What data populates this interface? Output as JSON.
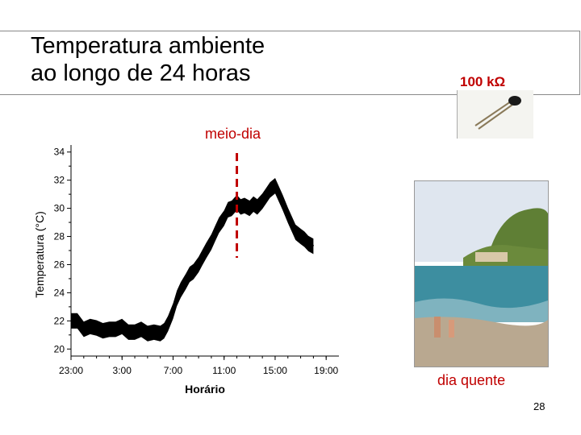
{
  "slide": {
    "title_line1": "Temperatura ambiente",
    "title_line2": "ao longo de 24 horas",
    "resistor_label": "100 kΩ",
    "noon_label": "meio-dia",
    "photo_caption": "dia quente",
    "page_number": "28"
  },
  "colors": {
    "accent": "#c00000",
    "data": "#000000"
  },
  "chart_data": {
    "type": "line",
    "title": "",
    "xlabel": "Horário",
    "ylabel": "Temperatura (°C)",
    "x_tick_labels": [
      "23:00",
      "3:00",
      "7:00",
      "11:00",
      "15:00",
      "19:00"
    ],
    "x_tick_hours": [
      -1,
      3,
      7,
      11,
      15,
      19
    ],
    "y_ticks": [
      20,
      22,
      24,
      26,
      28,
      30,
      32,
      34
    ],
    "xlim_hours": [
      -1,
      20
    ],
    "ylim": [
      19.5,
      34.5
    ],
    "noon_marker_hour": 12.0,
    "series": [
      {
        "x_hours": [
          -1.0,
          -0.5,
          0.0,
          0.5,
          1.0,
          1.5,
          2.0,
          2.5,
          3.0,
          3.5,
          4.0,
          4.5,
          5.0,
          5.5,
          6.0,
          6.3,
          6.6,
          7.0,
          7.3,
          7.6,
          8.0,
          8.3,
          8.6,
          9.0,
          9.3,
          9.6,
          10.0,
          10.3,
          10.6,
          11.0,
          11.3,
          11.6,
          12.0,
          12.3,
          12.6,
          13.0,
          13.3,
          13.6,
          14.0,
          14.3,
          14.6,
          15.0,
          15.3,
          15.6,
          16.0,
          16.3,
          16.6,
          17.0,
          17.3,
          17.6,
          18.0
        ],
        "y": [
          22.0,
          22.0,
          21.4,
          21.6,
          21.5,
          21.3,
          21.4,
          21.4,
          21.6,
          21.2,
          21.2,
          21.4,
          21.1,
          21.2,
          21.1,
          21.3,
          21.8,
          22.7,
          23.6,
          24.2,
          24.8,
          25.3,
          25.5,
          26.0,
          26.5,
          27.0,
          27.6,
          28.2,
          28.8,
          29.3,
          29.9,
          30.0,
          30.4,
          30.1,
          30.2,
          30.0,
          30.3,
          30.1,
          30.5,
          30.9,
          31.3,
          31.6,
          31.0,
          30.4,
          29.5,
          28.9,
          28.3,
          28.0,
          27.8,
          27.5,
          27.3
        ],
        "band": 0.55
      }
    ]
  }
}
